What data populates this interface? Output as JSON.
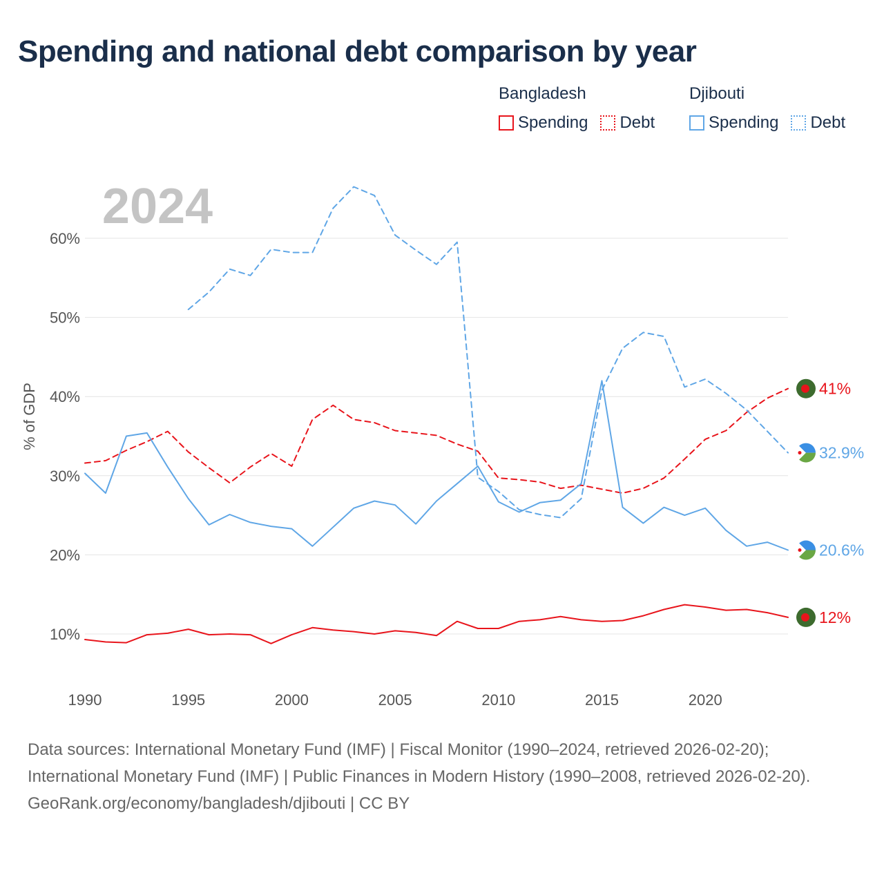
{
  "title": "Spending and national debt comparison by year",
  "year_watermark": "2024",
  "legend": {
    "groups": [
      {
        "country": "Bangladesh",
        "color": "#e8141b",
        "items": [
          {
            "label": "Spending",
            "style": "solid"
          },
          {
            "label": "Debt",
            "style": "dotted"
          }
        ]
      },
      {
        "country": "Djibouti",
        "color": "#5fa6e6",
        "items": [
          {
            "label": "Spending",
            "style": "solid"
          },
          {
            "label": "Debt",
            "style": "dotted"
          }
        ]
      }
    ]
  },
  "chart_data": {
    "type": "line",
    "ylabel": "% of GDP",
    "xlabel": "",
    "xlim": [
      1990,
      2024
    ],
    "ylim": [
      2,
      66
    ],
    "x_ticks": [
      1990,
      1995,
      2000,
      2005,
      2010,
      2015,
      2020
    ],
    "x_tick_labels": [
      "1990",
      "1995",
      "2000",
      "2005",
      "2010",
      "2015",
      "2020"
    ],
    "y_ticks": [
      10,
      20,
      30,
      40,
      50,
      60
    ],
    "y_tick_labels": [
      "10%",
      "20%",
      "30%",
      "40%",
      "50%",
      "60%"
    ],
    "series": [
      {
        "name": "Bangladesh Spending",
        "country": "Bangladesh",
        "metric": "Spending",
        "color": "#e8141b",
        "dash": "solid",
        "end_label": "12%",
        "x": [
          1990,
          1991,
          1992,
          1993,
          1994,
          1995,
          1996,
          1997,
          1998,
          1999,
          2000,
          2001,
          2002,
          2003,
          2004,
          2005,
          2006,
          2007,
          2008,
          2009,
          2010,
          2011,
          2012,
          2013,
          2014,
          2015,
          2016,
          2017,
          2018,
          2019,
          2020,
          2021,
          2022,
          2023,
          2024
        ],
        "values": [
          9.3,
          9.0,
          8.9,
          9.9,
          10.1,
          10.6,
          9.9,
          10.0,
          9.9,
          8.8,
          9.9,
          10.8,
          10.5,
          10.3,
          10.0,
          10.4,
          10.2,
          9.8,
          11.6,
          10.7,
          10.7,
          11.6,
          11.8,
          12.2,
          11.8,
          11.6,
          11.7,
          12.3,
          13.1,
          13.7,
          13.4,
          13.0,
          13.1,
          12.7,
          12.1
        ]
      },
      {
        "name": "Bangladesh Debt",
        "country": "Bangladesh",
        "metric": "Debt",
        "color": "#e8141b",
        "dash": "dashed",
        "end_label": "41%",
        "x": [
          1990,
          1991,
          1992,
          1993,
          1994,
          1995,
          1996,
          1997,
          1998,
          1999,
          2000,
          2001,
          2002,
          2003,
          2004,
          2005,
          2006,
          2007,
          2008,
          2009,
          2010,
          2011,
          2012,
          2013,
          2014,
          2015,
          2016,
          2017,
          2018,
          2019,
          2020,
          2021,
          2022,
          2023,
          2024
        ],
        "values": [
          31.6,
          31.9,
          33.2,
          34.3,
          35.6,
          33.0,
          31.0,
          29.1,
          31.1,
          32.8,
          31.2,
          37.1,
          38.9,
          37.1,
          36.7,
          35.7,
          35.4,
          35.1,
          34.0,
          33.1,
          29.7,
          29.5,
          29.2,
          28.4,
          28.8,
          28.3,
          27.8,
          28.4,
          29.7,
          32.1,
          34.6,
          35.7,
          38.0,
          39.8,
          41.0
        ]
      },
      {
        "name": "Djibouti Spending",
        "country": "Djibouti",
        "metric": "Spending",
        "color": "#5fa6e6",
        "dash": "solid",
        "end_label": "20.6%",
        "x": [
          1990,
          1991,
          1992,
          1993,
          1994,
          1995,
          1996,
          1997,
          1998,
          1999,
          2000,
          2001,
          2002,
          2003,
          2004,
          2005,
          2006,
          2007,
          2008,
          2009,
          2010,
          2011,
          2012,
          2013,
          2014,
          2015,
          2016,
          2017,
          2018,
          2019,
          2020,
          2021,
          2022,
          2023,
          2024
        ],
        "values": [
          30.3,
          27.8,
          35.0,
          35.4,
          31.1,
          27.1,
          23.8,
          25.1,
          24.1,
          23.6,
          23.3,
          21.1,
          23.5,
          25.9,
          26.8,
          26.3,
          23.9,
          26.8,
          29.0,
          31.2,
          26.7,
          25.4,
          26.6,
          26.9,
          29.0,
          42.0,
          26.0,
          24.0,
          26.0,
          25.0,
          25.9,
          23.1,
          21.1,
          21.6,
          20.6
        ]
      },
      {
        "name": "Djibouti Debt",
        "country": "Djibouti",
        "metric": "Debt",
        "color": "#5fa6e6",
        "dash": "dashed",
        "end_label": "32.9%",
        "x": [
          1995,
          1996,
          1997,
          1998,
          1999,
          2000,
          2001,
          2002,
          2003,
          2004,
          2005,
          2006,
          2007,
          2008,
          2009,
          2010,
          2011,
          2012,
          2013,
          2014,
          2015,
          2016,
          2017,
          2018,
          2019,
          2020,
          2021,
          2022,
          2023,
          2024
        ],
        "values": [
          51.0,
          53.2,
          56.1,
          55.3,
          58.6,
          58.2,
          58.2,
          63.8,
          66.5,
          65.4,
          60.4,
          58.5,
          56.7,
          59.5,
          29.8,
          28.0,
          25.7,
          25.1,
          24.7,
          27.1,
          40.8,
          46.1,
          48.1,
          47.6,
          41.2,
          42.2,
          40.4,
          38.3,
          35.6,
          32.9
        ]
      }
    ]
  },
  "footer": {
    "sources": "Data sources: International Monetary Fund (IMF) | Fiscal Monitor (1990–2024, retrieved 2026-02-20); International Monetary Fund (IMF) | Public Finances in Modern History (1990–2008, retrieved 2026-02-20).",
    "credit": "GeoRank.org/economy/bangladesh/djibouti | CC BY"
  }
}
